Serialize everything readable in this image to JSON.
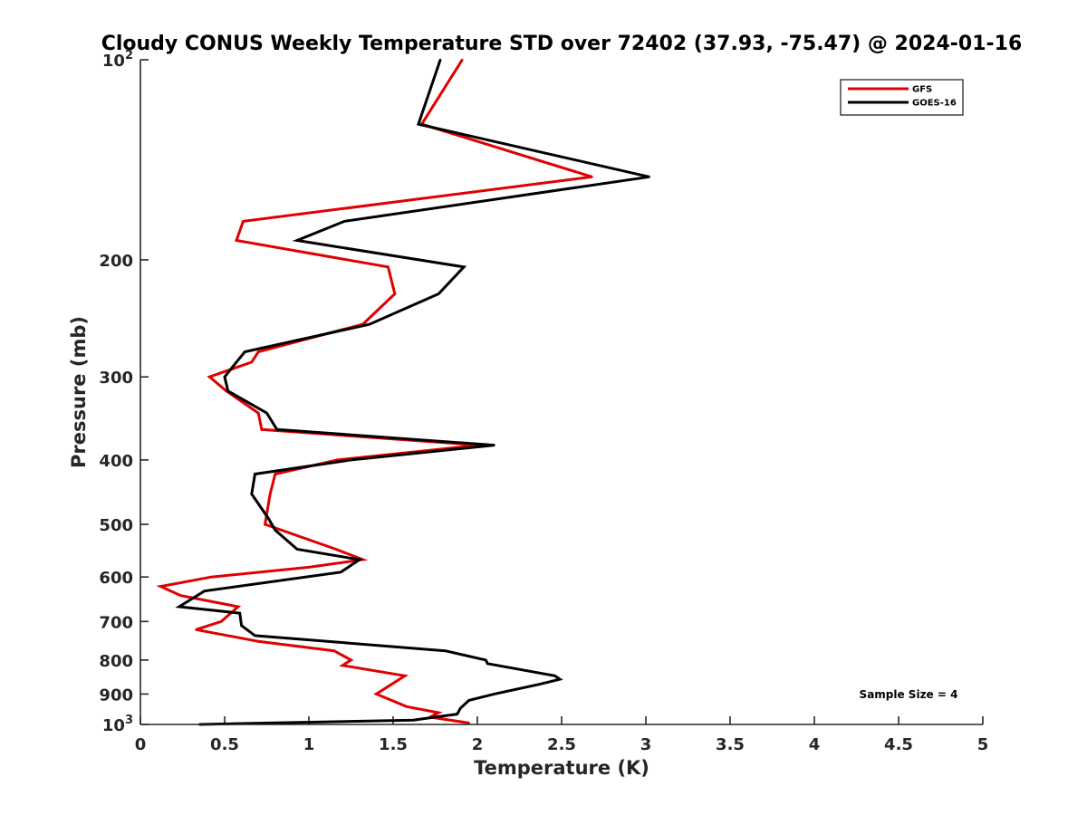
{
  "chart_data": {
    "type": "line",
    "title": "Cloudy CONUS Weekly Temperature STD over 72402 (37.93, -75.47) @ 2024-01-16",
    "xlabel": "Temperature (K)",
    "ylabel": "Pressure (mb)",
    "xlim": [
      0,
      5
    ],
    "ylim": [
      100,
      1000
    ],
    "y_scale": "log",
    "y_reversed": true,
    "x_ticks": [
      0,
      0.5,
      1,
      1.5,
      2,
      2.5,
      3,
      3.5,
      4,
      4.5,
      5
    ],
    "x_tick_labels": [
      "0",
      "0.5",
      "1",
      "1.5",
      "2",
      "2.5",
      "3",
      "3.5",
      "4",
      "4.5",
      "5"
    ],
    "y_ticks": [
      {
        "value": 100,
        "base": "10",
        "exp": "2"
      },
      {
        "value": 200,
        "label": "200"
      },
      {
        "value": 300,
        "label": "300"
      },
      {
        "value": 400,
        "label": "400"
      },
      {
        "value": 500,
        "label": "500"
      },
      {
        "value": 600,
        "label": "600"
      },
      {
        "value": 700,
        "label": "700"
      },
      {
        "value": 800,
        "label": "800"
      },
      {
        "value": 900,
        "label": "900"
      },
      {
        "value": 1000,
        "base": "10",
        "exp": "3"
      }
    ],
    "grid": false,
    "legend_position": "top-right",
    "annotation": "Sample Size = 4",
    "series": [
      {
        "name": "GFS",
        "color": "#e00000",
        "points": [
          {
            "x": 1.91,
            "y": 100
          },
          {
            "x": 1.67,
            "y": 125
          },
          {
            "x": 2.68,
            "y": 150
          },
          {
            "x": 0.61,
            "y": 175
          },
          {
            "x": 0.57,
            "y": 187
          },
          {
            "x": 1.47,
            "y": 205
          },
          {
            "x": 1.51,
            "y": 225
          },
          {
            "x": 1.32,
            "y": 250
          },
          {
            "x": 0.7,
            "y": 275
          },
          {
            "x": 0.66,
            "y": 285
          },
          {
            "x": 0.41,
            "y": 300
          },
          {
            "x": 0.51,
            "y": 315
          },
          {
            "x": 0.7,
            "y": 340
          },
          {
            "x": 0.72,
            "y": 360
          },
          {
            "x": 2.01,
            "y": 380
          },
          {
            "x": 1.17,
            "y": 400
          },
          {
            "x": 0.8,
            "y": 420
          },
          {
            "x": 0.77,
            "y": 450
          },
          {
            "x": 0.74,
            "y": 500
          },
          {
            "x": 1.16,
            "y": 545
          },
          {
            "x": 1.32,
            "y": 565
          },
          {
            "x": 1.0,
            "y": 580
          },
          {
            "x": 0.42,
            "y": 600
          },
          {
            "x": 0.12,
            "y": 620
          },
          {
            "x": 0.24,
            "y": 640
          },
          {
            "x": 0.58,
            "y": 665
          },
          {
            "x": 0.48,
            "y": 700
          },
          {
            "x": 0.33,
            "y": 720
          },
          {
            "x": 0.7,
            "y": 750
          },
          {
            "x": 1.15,
            "y": 775
          },
          {
            "x": 1.25,
            "y": 800
          },
          {
            "x": 1.2,
            "y": 815
          },
          {
            "x": 1.57,
            "y": 845
          },
          {
            "x": 1.4,
            "y": 900
          },
          {
            "x": 1.58,
            "y": 940
          },
          {
            "x": 1.77,
            "y": 960
          },
          {
            "x": 1.72,
            "y": 975
          },
          {
            "x": 1.95,
            "y": 995
          }
        ]
      },
      {
        "name": "GOES-16",
        "color": "#000000",
        "points": [
          {
            "x": 1.78,
            "y": 100
          },
          {
            "x": 1.65,
            "y": 125
          },
          {
            "x": 3.02,
            "y": 150
          },
          {
            "x": 1.21,
            "y": 175
          },
          {
            "x": 0.93,
            "y": 187
          },
          {
            "x": 1.92,
            "y": 205
          },
          {
            "x": 1.77,
            "y": 225
          },
          {
            "x": 1.36,
            "y": 250
          },
          {
            "x": 0.62,
            "y": 275
          },
          {
            "x": 0.57,
            "y": 285
          },
          {
            "x": 0.5,
            "y": 300
          },
          {
            "x": 0.52,
            "y": 315
          },
          {
            "x": 0.75,
            "y": 340
          },
          {
            "x": 0.81,
            "y": 360
          },
          {
            "x": 2.1,
            "y": 380
          },
          {
            "x": 1.25,
            "y": 400
          },
          {
            "x": 0.68,
            "y": 420
          },
          {
            "x": 0.66,
            "y": 450
          },
          {
            "x": 0.76,
            "y": 490
          },
          {
            "x": 0.8,
            "y": 510
          },
          {
            "x": 0.93,
            "y": 545
          },
          {
            "x": 1.3,
            "y": 565
          },
          {
            "x": 1.19,
            "y": 590
          },
          {
            "x": 0.38,
            "y": 630
          },
          {
            "x": 0.23,
            "y": 665
          },
          {
            "x": 0.59,
            "y": 680
          },
          {
            "x": 0.6,
            "y": 710
          },
          {
            "x": 0.68,
            "y": 735
          },
          {
            "x": 1.81,
            "y": 775
          },
          {
            "x": 2.05,
            "y": 800
          },
          {
            "x": 2.06,
            "y": 810
          },
          {
            "x": 2.46,
            "y": 845
          },
          {
            "x": 2.49,
            "y": 855
          },
          {
            "x": 2.37,
            "y": 870
          },
          {
            "x": 2.1,
            "y": 900
          },
          {
            "x": 1.95,
            "y": 920
          },
          {
            "x": 1.9,
            "y": 945
          },
          {
            "x": 1.88,
            "y": 965
          },
          {
            "x": 1.75,
            "y": 975
          },
          {
            "x": 1.62,
            "y": 985
          },
          {
            "x": 0.35,
            "y": 1000
          }
        ]
      }
    ]
  }
}
